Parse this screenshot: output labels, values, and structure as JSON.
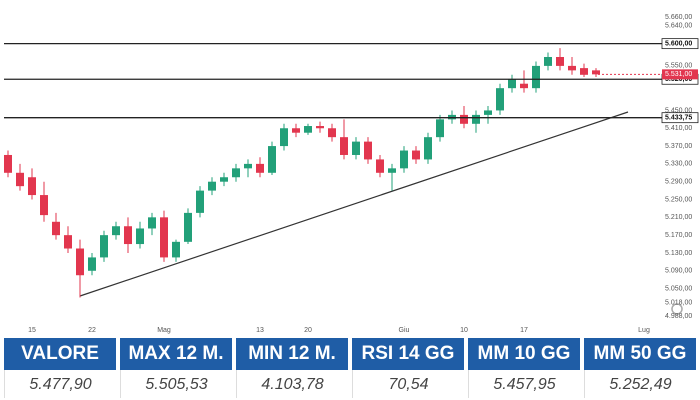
{
  "chart_data": {
    "type": "candlestick",
    "categories": [
      null,
      null,
      "15",
      null,
      null,
      null,
      null,
      "22",
      null,
      null,
      null,
      null,
      null,
      "Mag",
      null,
      null,
      null,
      null,
      null,
      null,
      null,
      "13",
      null,
      null,
      null,
      "20",
      null,
      null,
      null,
      null,
      null,
      null,
      null,
      "Giu",
      null,
      null,
      null,
      null,
      "10",
      null,
      null,
      null,
      null,
      "17",
      null,
      null,
      null,
      null,
      null,
      null,
      null,
      null,
      null,
      "Lug"
    ],
    "open": [
      5350,
      5310,
      5300,
      5260,
      5200,
      5170,
      5140,
      5090,
      5120,
      5170,
      5190,
      5150,
      5185,
      5210,
      5120,
      5155,
      5220,
      5270,
      5290,
      5300,
      5320,
      5330,
      5310,
      5370,
      5410,
      5400,
      5415,
      5410,
      5390,
      5350,
      5380,
      5340,
      5310,
      5320,
      5360,
      5340,
      5390,
      5430,
      5440,
      5420,
      5440,
      5450,
      5500,
      5510,
      5500,
      5550,
      5570,
      5550,
      5545,
      5540,
      null,
      null,
      null,
      null
    ],
    "high": [
      5360,
      5330,
      5320,
      5290,
      5220,
      5190,
      5160,
      5130,
      5180,
      5200,
      5210,
      5200,
      5220,
      5225,
      5160,
      5230,
      5280,
      5300,
      5310,
      5330,
      5340,
      5345,
      5380,
      5420,
      5420,
      5420,
      5425,
      5420,
      5430,
      5390,
      5390,
      5350,
      5330,
      5370,
      5370,
      5400,
      5440,
      5450,
      5460,
      5450,
      5460,
      5510,
      5530,
      5540,
      5560,
      5580,
      5590,
      5570,
      5555,
      5545,
      null,
      null,
      null,
      null
    ],
    "low": [
      5300,
      5270,
      5250,
      5200,
      5160,
      5130,
      5030,
      5080,
      5110,
      5160,
      5130,
      5140,
      5170,
      5110,
      5110,
      5150,
      5210,
      5260,
      5280,
      5290,
      5300,
      5300,
      5305,
      5360,
      5390,
      5395,
      5400,
      5380,
      5340,
      5340,
      5330,
      5300,
      5270,
      5310,
      5330,
      5330,
      5380,
      5420,
      5410,
      5400,
      5420,
      5440,
      5490,
      5490,
      5490,
      5540,
      5540,
      5530,
      5525,
      5525,
      null,
      null,
      null,
      null
    ],
    "close": [
      5310,
      5280,
      5260,
      5215,
      5170,
      5140,
      5080,
      5120,
      5170,
      5190,
      5150,
      5185,
      5210,
      5120,
      5155,
      5220,
      5270,
      5290,
      5300,
      5320,
      5330,
      5310,
      5370,
      5410,
      5400,
      5415,
      5410,
      5390,
      5350,
      5380,
      5340,
      5310,
      5320,
      5360,
      5340,
      5390,
      5430,
      5440,
      5420,
      5440,
      5450,
      5500,
      5520,
      5500,
      5550,
      5570,
      5550,
      5540,
      5530,
      5531,
      null,
      null,
      null,
      null
    ],
    "up_color": "#22a079",
    "down_color": "#e2364e",
    "ylim": [
      4975,
      5680
    ],
    "yticks": [
      {
        "value": 5660,
        "label": "5.660,00"
      },
      {
        "value": 5640,
        "label": "5.640,00"
      },
      {
        "value": 5550,
        "label": "5.550,00"
      },
      {
        "value": 5450,
        "label": "5.450,00"
      },
      {
        "value": 5410,
        "label": "5.410,00"
      },
      {
        "value": 5370,
        "label": "5.370,00"
      },
      {
        "value": 5330,
        "label": "5.330,00"
      },
      {
        "value": 5290,
        "label": "5.290,00"
      },
      {
        "value": 5250,
        "label": "5.250,00"
      },
      {
        "value": 5210,
        "label": "5.210,00"
      },
      {
        "value": 5170,
        "label": "5.170,00"
      },
      {
        "value": 5130,
        "label": "5.130,00"
      },
      {
        "value": 5090,
        "label": "5.090,00"
      },
      {
        "value": 5050,
        "label": "5.050,00"
      },
      {
        "value": 5018,
        "label": "5.018,00"
      },
      {
        "value": 4988,
        "label": "4.988,00"
      }
    ],
    "levels": [
      {
        "value": 5600,
        "label": "5.600,00"
      },
      {
        "value": 5520,
        "label": "5.520,00"
      },
      {
        "value": 5433.75,
        "label": "5.433,75"
      }
    ],
    "last_price": {
      "value": 5531,
      "label": "5.531,00"
    }
  },
  "table": {
    "headers": [
      "VALORE",
      "MAX 12 M.",
      "MIN 12 M.",
      "RSI 14 GG",
      "MM 10 GG",
      "MM 50 GG"
    ],
    "rows": [
      [
        "5.477,90",
        "5.505,53",
        "4.103,78",
        "70,54",
        "5.457,95",
        "5.252,49"
      ]
    ]
  }
}
